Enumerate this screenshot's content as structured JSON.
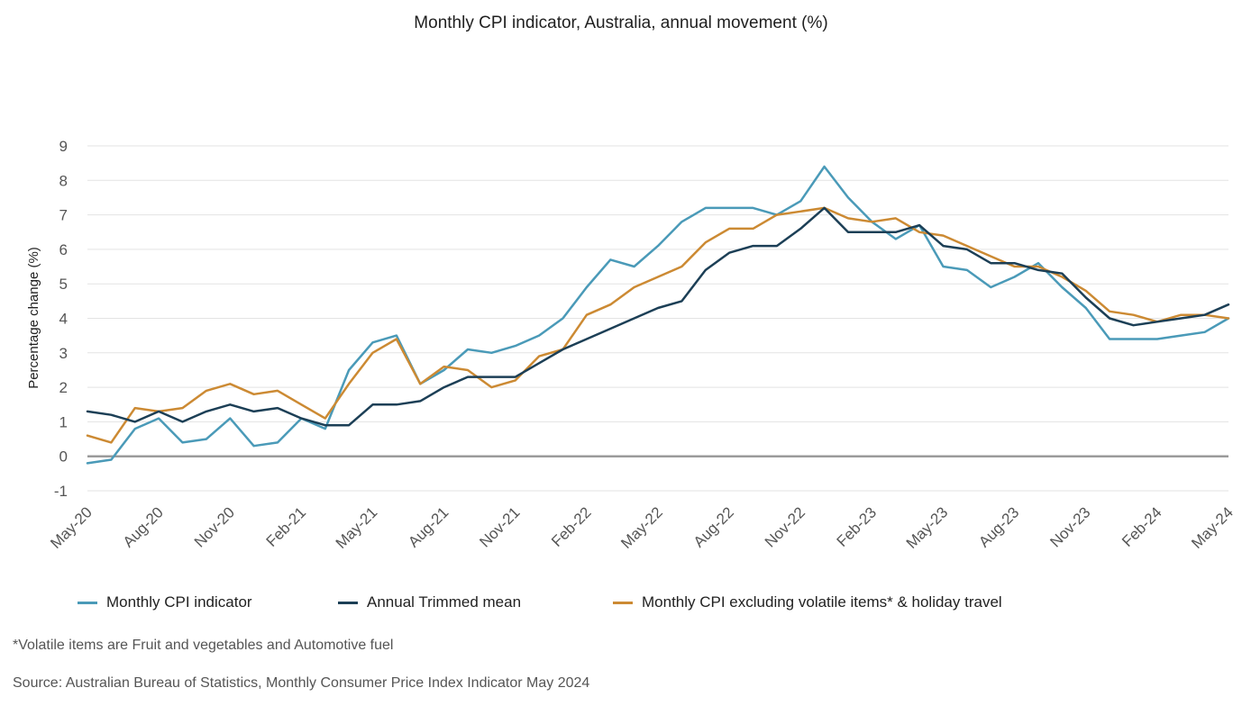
{
  "chart_data": {
    "type": "line",
    "title": "Monthly CPI indicator, Australia, annual movement (%)",
    "xlabel": "",
    "ylabel": "Percentage change (%)",
    "ylim": [
      -1,
      9
    ],
    "yticks": [
      "-1",
      "0",
      "1",
      "2",
      "3",
      "4",
      "5",
      "6",
      "7",
      "8",
      "9"
    ],
    "grid": "horizontal",
    "legend_position": "bottom",
    "x": [
      "May-20",
      "Jun-20",
      "Jul-20",
      "Aug-20",
      "Sep-20",
      "Oct-20",
      "Nov-20",
      "Dec-20",
      "Jan-21",
      "Feb-21",
      "Mar-21",
      "Apr-21",
      "May-21",
      "Jun-21",
      "Jul-21",
      "Aug-21",
      "Sep-21",
      "Oct-21",
      "Nov-21",
      "Dec-21",
      "Jan-22",
      "Feb-22",
      "Mar-22",
      "Apr-22",
      "May-22",
      "Jun-22",
      "Jul-22",
      "Aug-22",
      "Sep-22",
      "Oct-22",
      "Nov-22",
      "Dec-22",
      "Jan-23",
      "Feb-23",
      "Mar-23",
      "Apr-23",
      "May-23",
      "Jun-23",
      "Jul-23",
      "Aug-23",
      "Sep-23",
      "Oct-23",
      "Nov-23",
      "Dec-23",
      "Jan-24",
      "Feb-24",
      "Mar-24",
      "Apr-24",
      "May-24"
    ],
    "xtick_labels": [
      "May-20",
      "Aug-20",
      "Nov-20",
      "Feb-21",
      "May-21",
      "Aug-21",
      "Nov-21",
      "Feb-22",
      "May-22",
      "Aug-22",
      "Nov-22",
      "Feb-23",
      "May-23",
      "Aug-23",
      "Nov-23",
      "Feb-24",
      "May-24"
    ],
    "series": [
      {
        "name": "Monthly CPI indicator",
        "color": "#4a9ab8",
        "values": [
          -0.2,
          -0.1,
          0.8,
          1.1,
          0.4,
          0.5,
          1.1,
          0.3,
          0.4,
          1.1,
          0.8,
          2.5,
          3.3,
          3.5,
          2.1,
          2.5,
          3.1,
          3.0,
          3.2,
          3.5,
          4.0,
          4.9,
          5.7,
          5.5,
          6.1,
          6.8,
          7.2,
          7.2,
          7.2,
          7.0,
          7.4,
          8.4,
          7.5,
          6.8,
          6.3,
          6.7,
          5.5,
          5.4,
          4.9,
          5.2,
          5.6,
          4.9,
          4.3,
          3.4,
          3.4,
          3.4,
          3.5,
          3.6,
          4.0
        ]
      },
      {
        "name": "Annual Trimmed mean",
        "color": "#1c3f56",
        "values": [
          1.3,
          1.2,
          1.0,
          1.3,
          1.0,
          1.3,
          1.5,
          1.3,
          1.4,
          1.1,
          0.9,
          0.9,
          1.5,
          1.5,
          1.6,
          2.0,
          2.3,
          2.3,
          2.3,
          2.7,
          3.1,
          3.4,
          3.7,
          4.0,
          4.3,
          4.5,
          5.4,
          5.9,
          6.1,
          6.1,
          6.6,
          7.2,
          6.5,
          6.5,
          6.5,
          6.7,
          6.1,
          6.0,
          5.6,
          5.6,
          5.4,
          5.3,
          4.6,
          4.0,
          3.8,
          3.9,
          4.0,
          4.1,
          4.4
        ]
      },
      {
        "name": "Monthly CPI excluding volatile items* & holiday travel",
        "color": "#cc8a33",
        "values": [
          0.6,
          0.4,
          1.4,
          1.3,
          1.4,
          1.9,
          2.1,
          1.8,
          1.9,
          1.5,
          1.1,
          2.1,
          3.0,
          3.4,
          2.1,
          2.6,
          2.5,
          2.0,
          2.2,
          2.9,
          3.1,
          4.1,
          4.4,
          4.9,
          5.2,
          5.5,
          6.2,
          6.6,
          6.6,
          7.0,
          7.1,
          7.2,
          6.9,
          6.8,
          6.9,
          6.5,
          6.4,
          6.1,
          5.8,
          5.5,
          5.5,
          5.2,
          4.8,
          4.2,
          4.1,
          3.9,
          4.1,
          4.1,
          4.0
        ]
      }
    ]
  },
  "footnote": "*Volatile items are Fruit and vegetables and Automotive fuel",
  "source": "Source: Australian Bureau of Statistics, Monthly Consumer Price Index Indicator May 2024"
}
